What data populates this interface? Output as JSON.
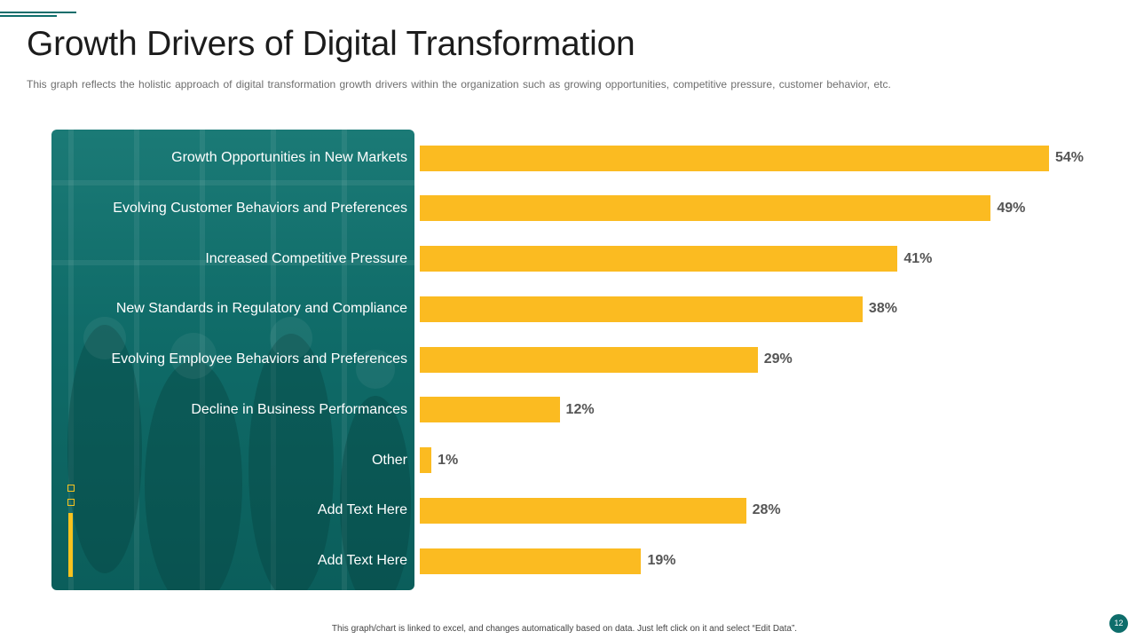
{
  "slide": {
    "title": "Growth Drivers of Digital Transformation",
    "subtitle": "This graph reflects the holistic approach of digital transformation growth drivers within the organization such as growing opportunities, competitive pressure, customer behavior, etc.",
    "footer_note": "This graph/chart is linked to excel, and changes automatically based on data. Just left click on it and select “Edit Data”.",
    "page_number": "12"
  },
  "colors": {
    "accent": "#0e6d6b",
    "bar": "#fbbb21",
    "panel": "#0f6b68"
  },
  "chart_data": {
    "type": "bar",
    "orientation": "horizontal",
    "title": "",
    "categories": [
      "Growth Opportunities in New Markets",
      "Evolving Customer Behaviors and Preferences",
      "Increased Competitive Pressure",
      "New Standards in Regulatory and Compliance",
      "Evolving Employee Behaviors and Preferences",
      "Decline in Business Performances",
      "Other",
      "Add Text Here",
      "Add Text Here"
    ],
    "values": [
      54,
      49,
      41,
      38,
      29,
      12,
      1,
      28,
      19
    ],
    "value_labels": [
      "54%",
      "49%",
      "41%",
      "38%",
      "29%",
      "12%",
      "1%",
      "28%",
      "19%"
    ],
    "unit": "%",
    "xlim": [
      0,
      54
    ],
    "grid": false,
    "legend": "none"
  }
}
